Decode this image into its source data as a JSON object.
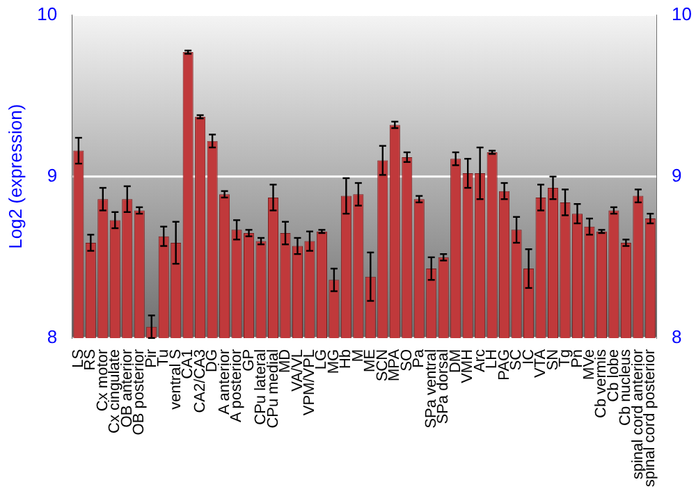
{
  "chart_data": {
    "type": "bar",
    "ylabel": "Log2 (expression)",
    "categories": [
      "LS",
      "RS",
      "Cx motor",
      "Cx cingulate",
      "OB anterior",
      "OB posterior",
      "Pir",
      "Tu",
      "ventral S",
      "CA1",
      "CA2/CA3",
      "DG",
      "A anterior",
      "A posterior",
      "GP",
      "CPu lateral",
      "CPu medial",
      "MD",
      "VA/VL",
      "VPM/VPL",
      "LG",
      "MG",
      "Hb",
      "M",
      "ME",
      "SCN",
      "MPA",
      "SO",
      "Pa",
      "SPa ventral",
      "SPa dorsal",
      "DM",
      "VMH",
      "Arc",
      "LH",
      "PAG",
      "SC",
      "IC",
      "VTA",
      "SN",
      "Tg",
      "Pn",
      "MVe",
      "Cb vermis",
      "Cb lobe",
      "Cb nucleus",
      "spinal cord anterior",
      "spinal cord posterior"
    ],
    "values": [
      9.16,
      8.59,
      8.86,
      8.73,
      8.86,
      8.79,
      8.07,
      8.63,
      8.59,
      9.77,
      9.37,
      9.22,
      8.89,
      8.67,
      8.65,
      8.6,
      8.87,
      8.65,
      8.57,
      8.6,
      8.66,
      8.36,
      8.88,
      8.89,
      8.38,
      9.1,
      9.32,
      9.12,
      8.86,
      8.43,
      8.5,
      9.11,
      9.02,
      9.02,
      9.15,
      8.91,
      8.67,
      8.43,
      8.87,
      8.93,
      8.84,
      8.77,
      8.69,
      8.66,
      8.79,
      8.59,
      8.88,
      8.74
    ],
    "errors": [
      0.08,
      0.05,
      0.07,
      0.05,
      0.08,
      0.02,
      0.07,
      0.06,
      0.13,
      0.01,
      0.01,
      0.04,
      0.02,
      0.06,
      0.02,
      0.02,
      0.08,
      0.07,
      0.05,
      0.06,
      0.01,
      0.07,
      0.11,
      0.07,
      0.15,
      0.09,
      0.02,
      0.03,
      0.02,
      0.07,
      0.02,
      0.04,
      0.09,
      0.16,
      0.01,
      0.05,
      0.08,
      0.12,
      0.08,
      0.07,
      0.08,
      0.06,
      0.05,
      0.01,
      0.02,
      0.02,
      0.04,
      0.03
    ],
    "color": "#c0393b",
    "ylim": [
      8,
      10
    ],
    "yticks": [
      8,
      9,
      10
    ],
    "y2lim": [
      8,
      10
    ],
    "y2ticks": [
      8,
      9,
      10
    ],
    "grid": "y",
    "legend": false
  }
}
